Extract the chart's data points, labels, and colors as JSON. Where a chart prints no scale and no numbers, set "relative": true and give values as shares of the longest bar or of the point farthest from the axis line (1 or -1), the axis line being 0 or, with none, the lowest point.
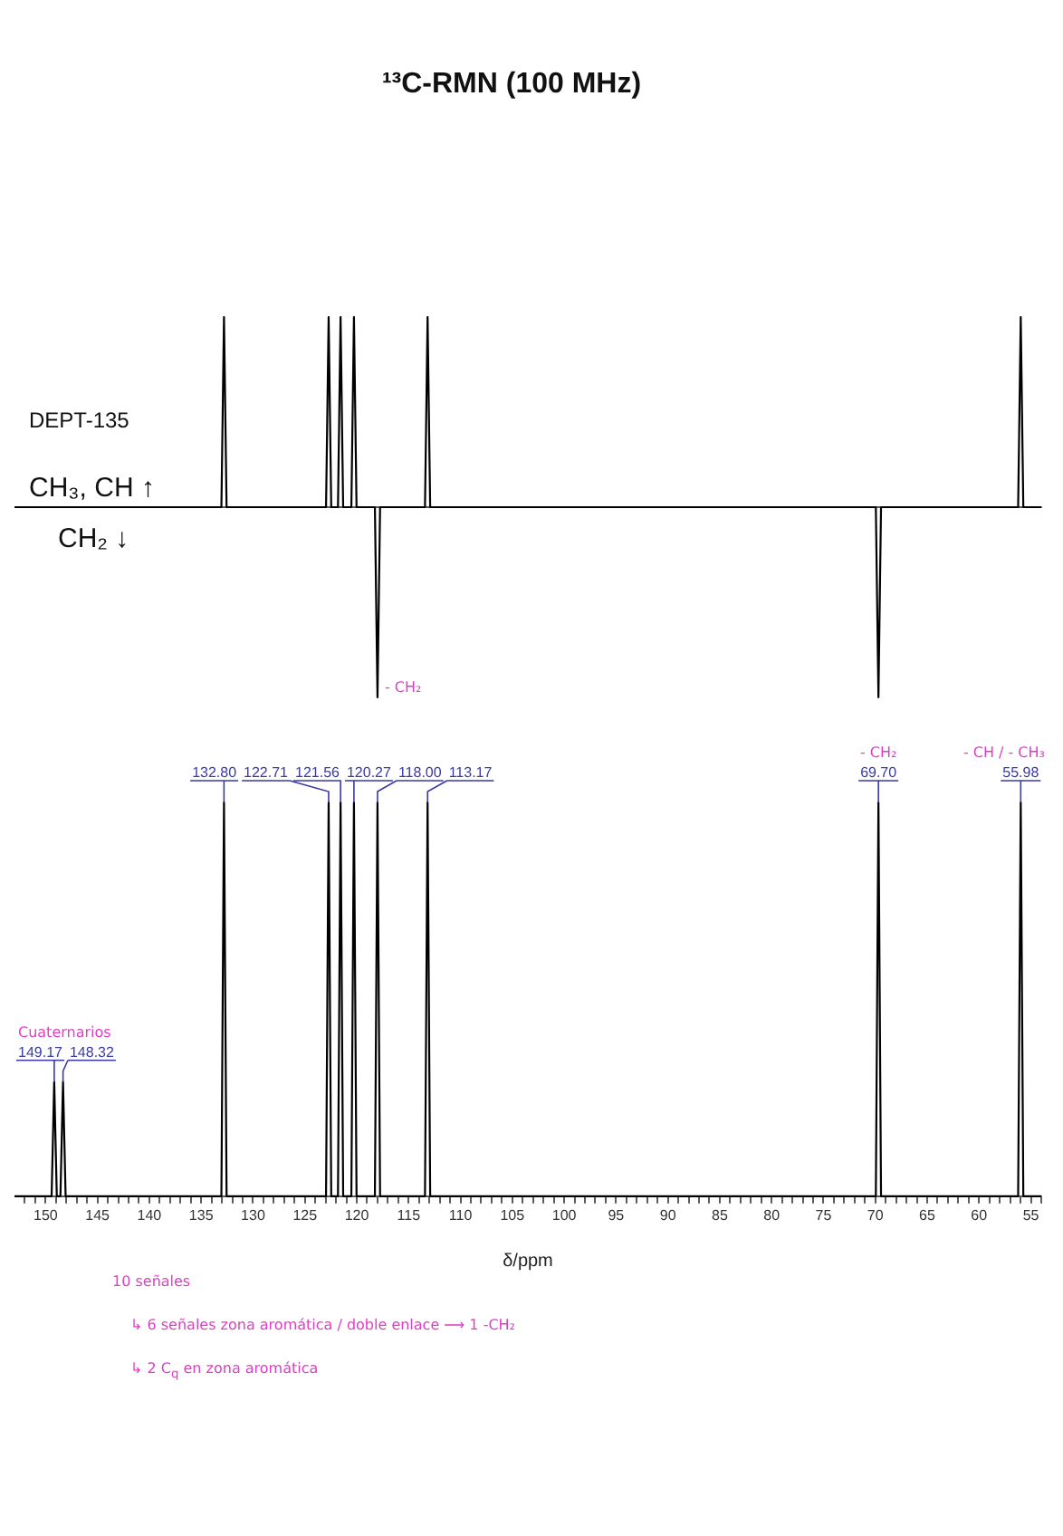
{
  "chart_data": [
    {
      "type": "line",
      "title": "¹³C-RMN (100 MHz)",
      "relative": true,
      "x": [
        153,
        133.05,
        132.8,
        132.55,
        122.96,
        122.71,
        122.46,
        121.81,
        121.56,
        121.31,
        120.52,
        120.27,
        120.02,
        118.25,
        118.0,
        117.75,
        113.42,
        113.17,
        112.92,
        69.95,
        69.7,
        69.45,
        56.23,
        55.98,
        55.73,
        54
      ],
      "series": [
        {
          "color": "#000000",
          "values": [
            0,
            0,
            1,
            0,
            0,
            1,
            0,
            0,
            1,
            0,
            0,
            1,
            0,
            0,
            -1,
            0,
            0,
            1,
            0,
            0,
            -1,
            0,
            0,
            1,
            0,
            0
          ]
        }
      ],
      "xlim": [
        153,
        54
      ],
      "tick_labels": false,
      "grid": false,
      "legend": false,
      "annotations": [
        "DEPT-135",
        "CH₃, CH ↑",
        "CH₂ ↓",
        {
          "text": "- CH₂",
          "x": 118.0,
          "y": -1
        }
      ]
    },
    {
      "type": "line",
      "relative": true,
      "x": [
        153,
        149.42,
        149.17,
        148.92,
        148.57,
        148.32,
        148.07,
        133.05,
        132.8,
        132.55,
        122.96,
        122.71,
        122.46,
        121.81,
        121.56,
        121.31,
        120.52,
        120.27,
        120.02,
        118.25,
        118.0,
        117.75,
        113.42,
        113.17,
        112.92,
        69.95,
        69.7,
        69.45,
        56.23,
        55.98,
        55.73,
        54
      ],
      "series": [
        {
          "color": "#000000",
          "values": [
            0,
            0,
            0.29,
            0,
            0,
            0.29,
            0,
            0,
            1,
            0,
            0,
            1,
            0,
            0,
            1,
            0,
            0,
            1,
            0,
            0,
            1,
            0,
            0,
            1,
            0,
            0,
            1,
            0,
            0,
            1,
            0,
            0
          ]
        }
      ],
      "xlim": [
        153,
        54
      ],
      "xticks": [
        {
          "value": 152,
          "label": null
        },
        {
          "value": 151,
          "label": null
        },
        150,
        {
          "value": 149,
          "label": null
        },
        {
          "value": 148,
          "label": null
        },
        {
          "value": 147,
          "label": null
        },
        {
          "value": 146,
          "label": null
        },
        145,
        {
          "value": 144,
          "label": null
        },
        {
          "value": 143,
          "label": null
        },
        {
          "value": 142,
          "label": null
        },
        {
          "value": 141,
          "label": null
        },
        140,
        {
          "value": 139,
          "label": null
        },
        {
          "value": 138,
          "label": null
        },
        {
          "value": 137,
          "label": null
        },
        {
          "value": 136,
          "label": null
        },
        135,
        {
          "value": 134,
          "label": null
        },
        {
          "value": 133,
          "label": null
        },
        {
          "value": 132,
          "label": null
        },
        {
          "value": 131,
          "label": null
        },
        130,
        {
          "value": 129,
          "label": null
        },
        {
          "value": 128,
          "label": null
        },
        {
          "value": 127,
          "label": null
        },
        {
          "value": 126,
          "label": null
        },
        125,
        {
          "value": 124,
          "label": null
        },
        {
          "value": 123,
          "label": null
        },
        {
          "value": 122,
          "label": null
        },
        {
          "value": 121,
          "label": null
        },
        120,
        {
          "value": 119,
          "label": null
        },
        {
          "value": 118,
          "label": null
        },
        {
          "value": 117,
          "label": null
        },
        {
          "value": 116,
          "label": null
        },
        115,
        {
          "value": 114,
          "label": null
        },
        {
          "value": 113,
          "label": null
        },
        {
          "value": 112,
          "label": null
        },
        {
          "value": 111,
          "label": null
        },
        110,
        {
          "value": 109,
          "label": null
        },
        {
          "value": 108,
          "label": null
        },
        {
          "value": 107,
          "label": null
        },
        {
          "value": 106,
          "label": null
        },
        105,
        {
          "value": 104,
          "label": null
        },
        {
          "value": 103,
          "label": null
        },
        {
          "value": 102,
          "label": null
        },
        {
          "value": 101,
          "label": null
        },
        100,
        {
          "value": 99,
          "label": null
        },
        {
          "value": 98,
          "label": null
        },
        {
          "value": 97,
          "label": null
        },
        {
          "value": 96,
          "label": null
        },
        95,
        {
          "value": 94,
          "label": null
        },
        {
          "value": 93,
          "label": null
        },
        {
          "value": 92,
          "label": null
        },
        {
          "value": 91,
          "label": null
        },
        90,
        {
          "value": 89,
          "label": null
        },
        {
          "value": 88,
          "label": null
        },
        {
          "value": 87,
          "label": null
        },
        {
          "value": 86,
          "label": null
        },
        85,
        {
          "value": 84,
          "label": null
        },
        {
          "value": 83,
          "label": null
        },
        {
          "value": 82,
          "label": null
        },
        {
          "value": 81,
          "label": null
        },
        80,
        {
          "value": 79,
          "label": null
        },
        {
          "value": 78,
          "label": null
        },
        {
          "value": 77,
          "label": null
        },
        {
          "value": 76,
          "label": null
        },
        75,
        {
          "value": 74,
          "label": null
        },
        {
          "value": 73,
          "label": null
        },
        {
          "value": 72,
          "label": null
        },
        {
          "value": 71,
          "label": null
        },
        70,
        {
          "value": 69,
          "label": null
        },
        {
          "value": 68,
          "label": null
        },
        {
          "value": 67,
          "label": null
        },
        {
          "value": 66,
          "label": null
        },
        65,
        {
          "value": 64,
          "label": null
        },
        {
          "value": 63,
          "label": null
        },
        {
          "value": 62,
          "label": null
        },
        {
          "value": 61,
          "label": null
        },
        60,
        {
          "value": 59,
          "label": null
        },
        {
          "value": 58,
          "label": null
        },
        {
          "value": 57,
          "label": null
        },
        {
          "value": 56,
          "label": null
        },
        55,
        {
          "value": 54,
          "label": null
        }
      ],
      "xlabel": "δ/ppm",
      "tick_labels": "x",
      "grid": false,
      "legend": false,
      "annotations": [
        {
          "text": "149.17",
          "x": 149.17,
          "y": 0.29
        },
        {
          "text": "148.32",
          "x": 148.32,
          "y": 0.29
        },
        {
          "text": "132.80",
          "x": 132.8,
          "y": 1
        },
        {
          "text": "122.71",
          "x": 122.71,
          "y": 1
        },
        {
          "text": "121.56",
          "x": 121.56,
          "y": 1
        },
        {
          "text": "120.27",
          "x": 120.27,
          "y": 1
        },
        {
          "text": "118.00",
          "x": 118.0,
          "y": 1
        },
        {
          "text": "113.17",
          "x": 113.17,
          "y": 1
        },
        {
          "text": "69.70",
          "x": 69.7,
          "y": 1
        },
        {
          "text": "55.98",
          "x": 55.98,
          "y": 1
        },
        {
          "text": "Cuaternarios",
          "x": 148.32,
          "y": 0.29
        },
        {
          "text": "- CH₂",
          "x": 69.7,
          "y": 1
        },
        {
          "text": "- CH / - CH₃",
          "x": 55.98,
          "y": 1
        },
        "10 señales",
        "↳ 6 señales zona aromática / doble enlace ⟶ 1 -CH₂",
        "↳ 2 C$_{q}$ en zona aromática"
      ]
    }
  ]
}
